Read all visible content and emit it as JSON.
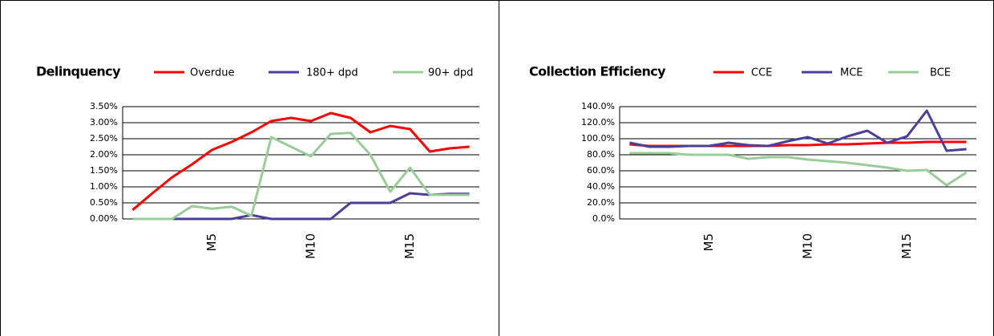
{
  "chart_data": [
    {
      "type": "line",
      "title": "Delinquency",
      "categories": [
        null,
        null,
        null,
        null,
        "M5",
        null,
        null,
        null,
        null,
        "M10",
        null,
        null,
        null,
        null,
        "M15",
        null,
        null,
        null
      ],
      "series": [
        {
          "name": "Overdue",
          "color": "#ff0000",
          "values": [
            0.28,
            0.8,
            1.3,
            1.7,
            2.15,
            2.4,
            2.7,
            3.05,
            3.15,
            3.05,
            3.3,
            3.15,
            2.7,
            2.9,
            2.8,
            2.1,
            2.2,
            2.25
          ]
        },
        {
          "name": "180+ dpd",
          "color": "#4b3f9a",
          "values": [
            0,
            0,
            0,
            0,
            0,
            0,
            0.12,
            0,
            0,
            0,
            0,
            0.5,
            0.5,
            0.5,
            0.8,
            0.75,
            0.78,
            0.78
          ]
        },
        {
          "name": "90+ dpd",
          "color": "#99cc99",
          "values": [
            0,
            0,
            0,
            0.4,
            0.32,
            0.38,
            0.1,
            2.55,
            2.25,
            1.95,
            2.65,
            2.68,
            2.0,
            0.85,
            1.6,
            0.75,
            0.75,
            0.75
          ]
        }
      ],
      "ylim": [
        0,
        3.5
      ],
      "yticks": [
        {
          "value": 0,
          "label": "0.00%"
        },
        {
          "value": 0.5,
          "label": "0.50%"
        },
        {
          "value": 1,
          "label": "1.00%"
        },
        {
          "value": 1.5,
          "label": "1.50%"
        },
        {
          "value": 2,
          "label": "2.00%"
        },
        {
          "value": 2.5,
          "label": "2.50%"
        },
        {
          "value": 3,
          "label": "3.00%"
        },
        {
          "value": 3.5,
          "label": "3.50%"
        }
      ],
      "grid": true
    },
    {
      "type": "line",
      "title": "Collection Efficiency",
      "categories": [
        null,
        null,
        null,
        null,
        "M5",
        null,
        null,
        null,
        null,
        "M10",
        null,
        null,
        null,
        null,
        "M15",
        null,
        null,
        null
      ],
      "series": [
        {
          "name": "CCE",
          "color": "#ff0000",
          "values": [
            93,
            91,
            91,
            91,
            91,
            91,
            91,
            91,
            92,
            92,
            93,
            93,
            94,
            95,
            95,
            96,
            96,
            96
          ]
        },
        {
          "name": "MCE",
          "color": "#4b3f9a",
          "values": [
            95,
            90,
            90,
            91,
            91,
            95,
            92,
            91,
            97,
            102,
            94,
            103,
            110,
            95,
            103,
            135,
            85,
            87
          ]
        },
        {
          "name": "BCE",
          "color": "#99cc99",
          "values": [
            82,
            82,
            82,
            80,
            80,
            80,
            75,
            77,
            77,
            74,
            72,
            70,
            67,
            64,
            60,
            61,
            42,
            58
          ]
        }
      ],
      "ylim": [
        0,
        140
      ],
      "yticks": [
        {
          "value": 0,
          "label": "0.0%"
        },
        {
          "value": 20,
          "label": "20.0%"
        },
        {
          "value": 40,
          "label": "40.0%"
        },
        {
          "value": 60,
          "label": "60.0%"
        },
        {
          "value": 80,
          "label": "80.0%"
        },
        {
          "value": 100,
          "label": "100.0%"
        },
        {
          "value": 120,
          "label": "120.0%"
        },
        {
          "value": 140,
          "label": "140.0%"
        }
      ],
      "grid": true
    }
  ]
}
